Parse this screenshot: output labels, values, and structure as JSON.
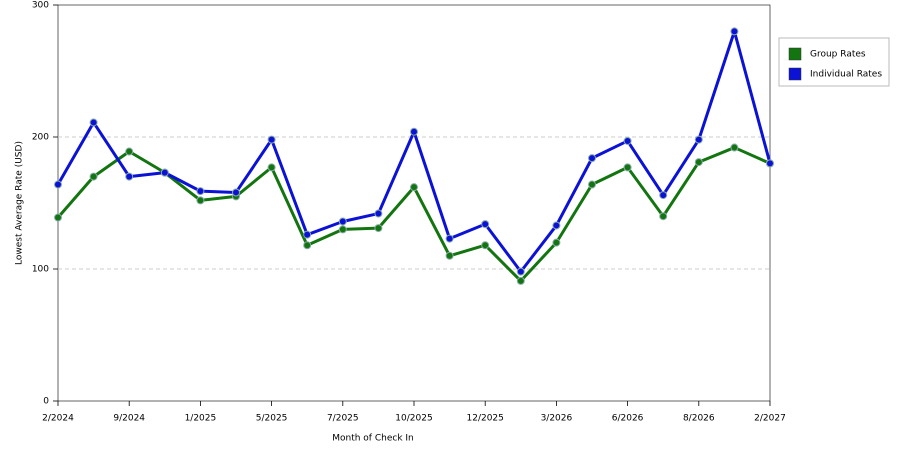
{
  "chart_data": {
    "type": "line",
    "x_label": "Month of Check In",
    "y_label": "Lowest Average Rate (USD)",
    "categories": [
      "2/2024",
      null,
      "9/2024",
      null,
      "1/2025",
      null,
      "5/2025",
      null,
      "7/2025",
      null,
      "10/2025",
      null,
      "12/2025",
      null,
      "3/2026",
      null,
      "6/2026",
      null,
      "8/2026",
      null,
      "2/2027"
    ],
    "series": [
      {
        "name": "Group Rates",
        "color": "#13750f",
        "values": [
          139,
          170,
          189,
          173,
          152,
          155,
          177,
          118,
          130,
          131,
          162,
          110,
          118,
          91,
          120,
          164,
          177,
          140,
          181,
          192,
          180
        ]
      },
      {
        "name": "Individual Rates",
        "color": "#0b12d6",
        "values": [
          164,
          211,
          170,
          173,
          159,
          158,
          198,
          126,
          136,
          142,
          204,
          123,
          134,
          98,
          133,
          184,
          197,
          156,
          198,
          280,
          180
        ]
      }
    ],
    "ylim": [
      0,
      300
    ],
    "yticks": [
      0,
      100,
      200,
      300
    ],
    "grid": true,
    "legend": "right"
  }
}
